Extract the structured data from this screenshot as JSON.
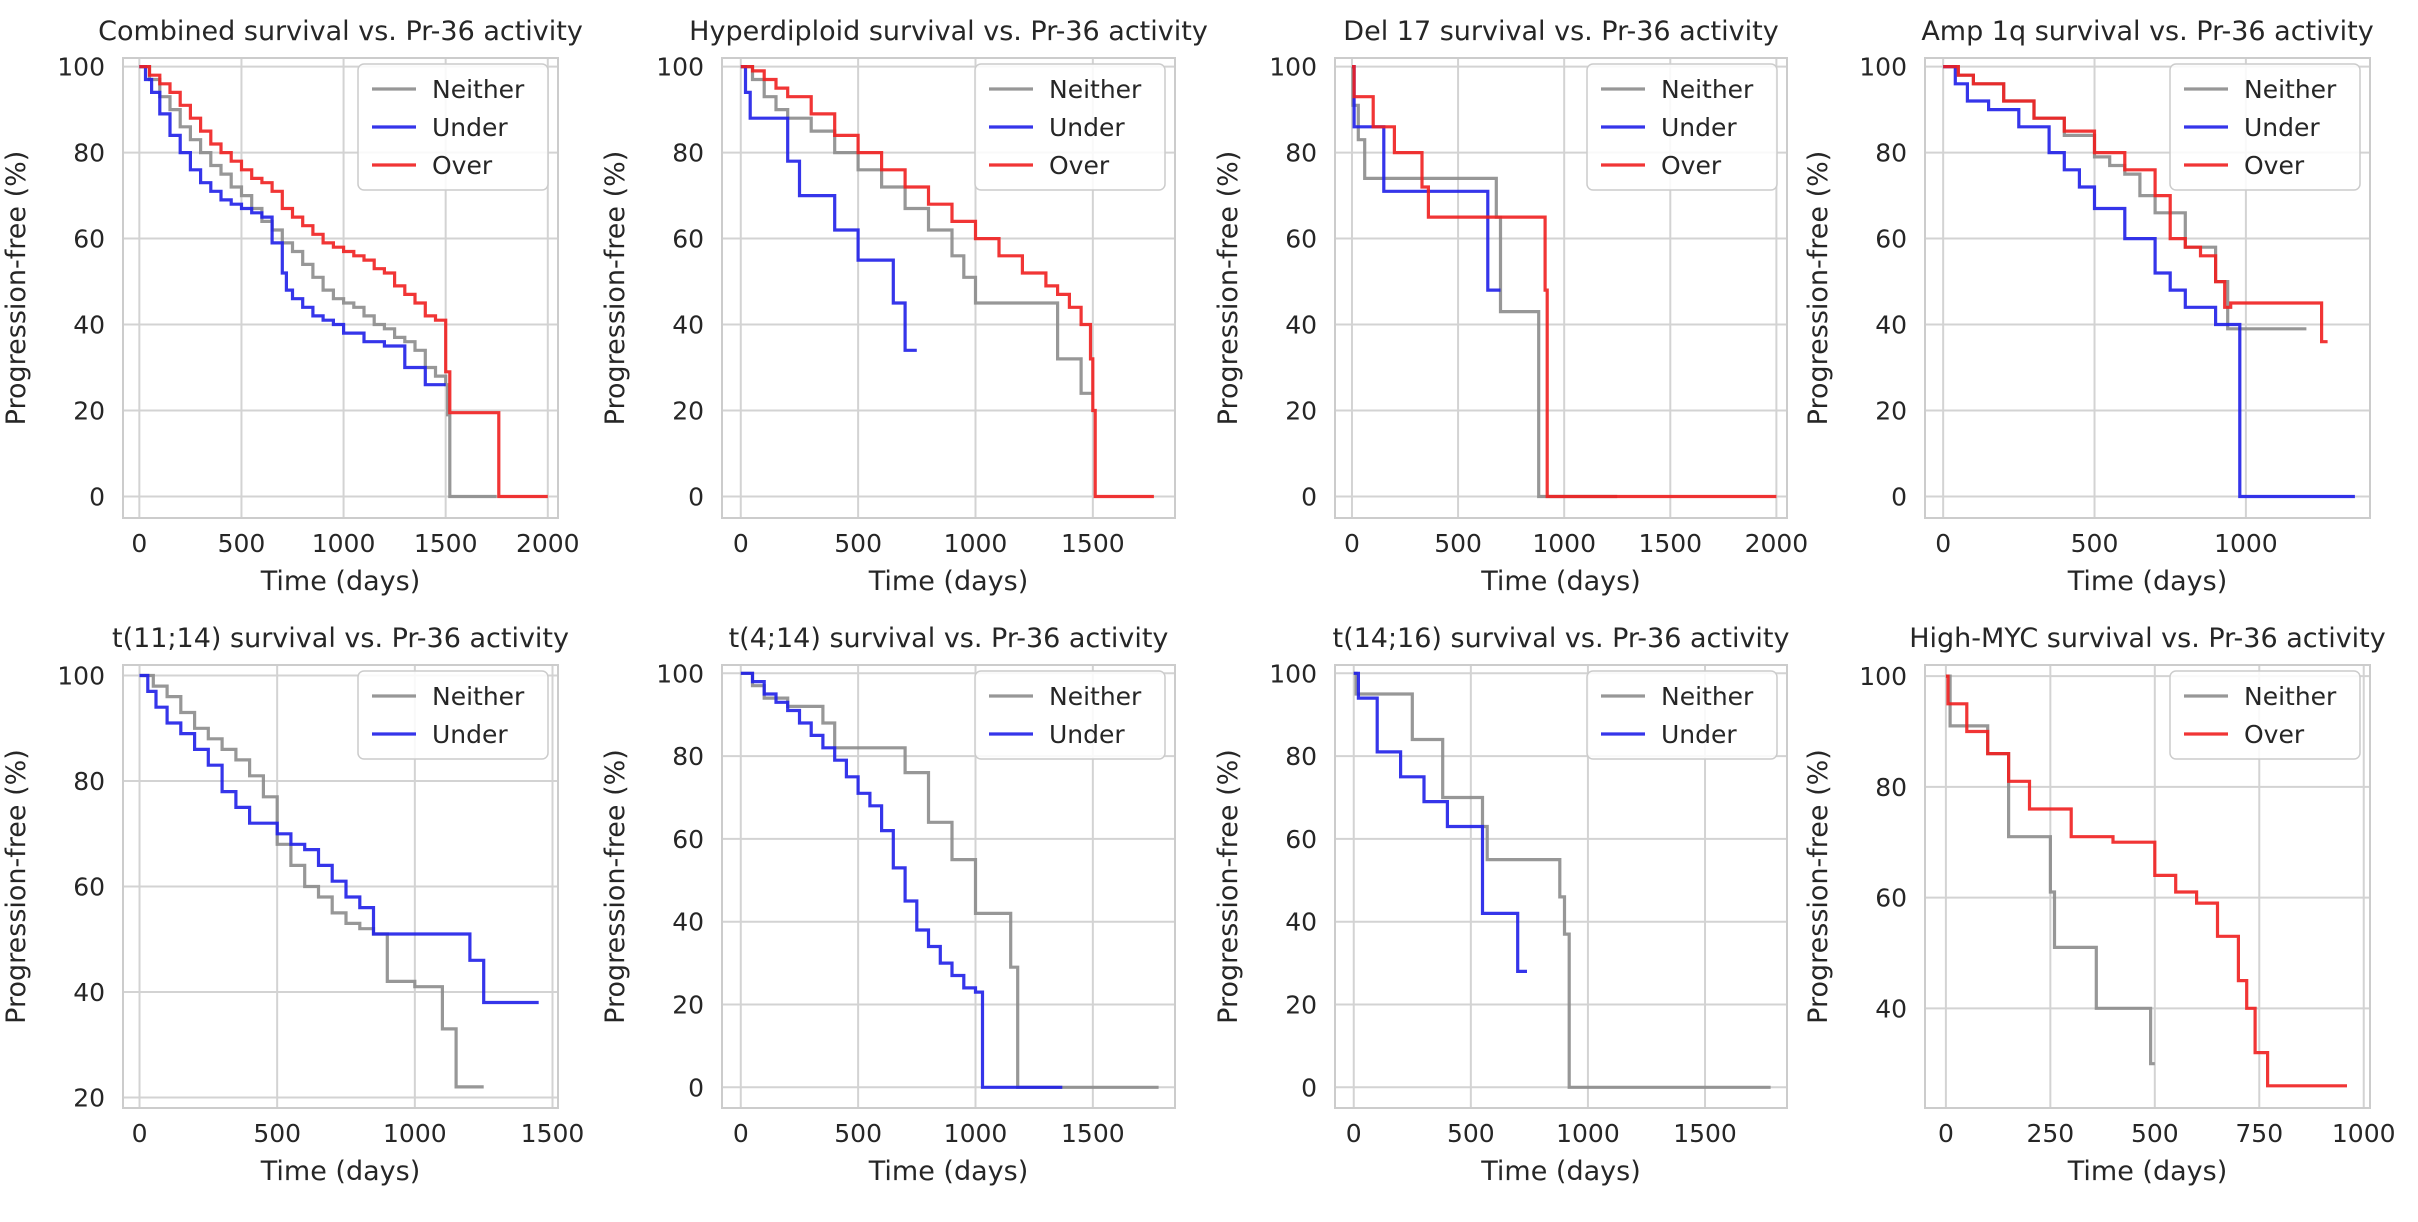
{
  "figure": {
    "ylabel": "Progression-free (%)",
    "xlabel": "Time (days)"
  },
  "colors": {
    "Neither": "#8c8c8c",
    "Under": "#1f1fe8",
    "Over": "#ef1f1f"
  },
  "chart_data": [
    {
      "type": "line",
      "title": "Combined survival vs. Pr-36 activity",
      "xlabel": "Time (days)",
      "ylabel": "Progression-free (%)",
      "xlim": [
        -80,
        2050
      ],
      "ylim": [
        -5,
        102
      ],
      "xticks": [
        0,
        500,
        1000,
        1500,
        2000
      ],
      "yticks": [
        0,
        20,
        40,
        60,
        80,
        100
      ],
      "legend": [
        "Neither",
        "Under",
        "Over"
      ],
      "series": [
        {
          "name": "Neither",
          "x": [
            0,
            50,
            100,
            150,
            200,
            250,
            300,
            350,
            400,
            450,
            500,
            550,
            600,
            650,
            700,
            750,
            800,
            850,
            900,
            950,
            1000,
            1050,
            1100,
            1150,
            1200,
            1250,
            1300,
            1350,
            1400,
            1450,
            1500,
            1510,
            1520,
            1750
          ],
          "y": [
            100,
            97,
            93,
            90,
            86,
            83,
            80,
            77,
            75,
            72,
            70,
            67,
            64,
            62,
            59,
            57,
            54,
            51,
            48,
            46,
            45,
            44,
            42,
            40,
            39,
            37,
            36,
            34,
            30,
            28,
            26,
            19,
            0,
            0
          ]
        },
        {
          "name": "Under",
          "x": [
            0,
            30,
            60,
            100,
            150,
            200,
            250,
            300,
            350,
            400,
            450,
            500,
            550,
            600,
            650,
            700,
            720,
            750,
            800,
            850,
            900,
            950,
            1000,
            1100,
            1200,
            1300,
            1350,
            1400,
            1450,
            1500
          ],
          "y": [
            100,
            97,
            94,
            89,
            84,
            80,
            76,
            73,
            71,
            69,
            68,
            67,
            66,
            65,
            59,
            52,
            48,
            46,
            44,
            42,
            41,
            40,
            38,
            36,
            35,
            30,
            30,
            26,
            26,
            26
          ]
        },
        {
          "name": "Over",
          "x": [
            0,
            50,
            100,
            150,
            200,
            250,
            300,
            350,
            400,
            450,
            500,
            550,
            600,
            650,
            700,
            750,
            800,
            850,
            900,
            950,
            1000,
            1050,
            1100,
            1150,
            1200,
            1250,
            1300,
            1350,
            1400,
            1450,
            1500,
            1520,
            1750,
            1760,
            2000
          ],
          "y": [
            100,
            98,
            96,
            94,
            91,
            88,
            85,
            82,
            80,
            78,
            76,
            74,
            73,
            71,
            67,
            65,
            63,
            61,
            59,
            58,
            57,
            56,
            55,
            53,
            52,
            49,
            47,
            45,
            42,
            41,
            29,
            19.5,
            19.5,
            0,
            0
          ]
        }
      ]
    },
    {
      "type": "line",
      "title": "Hyperdiploid survival vs. Pr-36 activity",
      "xlabel": "Time (days)",
      "ylabel": "Progression-free (%)",
      "xlim": [
        -80,
        1850
      ],
      "ylim": [
        -5,
        102
      ],
      "xticks": [
        0,
        500,
        1000,
        1500
      ],
      "yticks": [
        0,
        20,
        40,
        60,
        80,
        100
      ],
      "legend": [
        "Neither",
        "Under",
        "Over"
      ],
      "series": [
        {
          "name": "Neither",
          "x": [
            0,
            50,
            100,
            150,
            200,
            300,
            400,
            500,
            600,
            700,
            800,
            900,
            950,
            1000,
            1100,
            1200,
            1300,
            1350,
            1450,
            1500
          ],
          "y": [
            100,
            97,
            93,
            90,
            88,
            85,
            80,
            76,
            72,
            67,
            62,
            56,
            51,
            45,
            45,
            45,
            45,
            32,
            24,
            24
          ]
        },
        {
          "name": "Under",
          "x": [
            0,
            20,
            40,
            80,
            200,
            250,
            300,
            400,
            450,
            500,
            600,
            650,
            700,
            750
          ],
          "y": [
            100,
            94,
            88,
            88,
            78,
            70,
            70,
            62,
            62,
            55,
            55,
            45,
            34,
            34
          ]
        },
        {
          "name": "Over",
          "x": [
            0,
            50,
            100,
            150,
            200,
            300,
            400,
            500,
            600,
            700,
            800,
            900,
            1000,
            1100,
            1200,
            1300,
            1350,
            1400,
            1450,
            1490,
            1500,
            1510,
            1760
          ],
          "y": [
            100,
            99,
            97,
            95,
            93,
            89,
            84,
            80,
            76,
            72,
            68,
            64,
            60,
            56,
            52,
            49,
            47,
            44,
            40,
            32,
            20,
            0,
            0
          ]
        }
      ]
    },
    {
      "type": "line",
      "title": "Del 17 survival vs. Pr-36 activity",
      "xlabel": "Time (days)",
      "ylabel": "Progression-free (%)",
      "xlim": [
        -80,
        2050
      ],
      "ylim": [
        -5,
        102
      ],
      "xticks": [
        0,
        500,
        1000,
        1500,
        2000
      ],
      "yticks": [
        0,
        20,
        40,
        60,
        80,
        100
      ],
      "legend": [
        "Neither",
        "Under",
        "Over"
      ],
      "series": [
        {
          "name": "Neither",
          "x": [
            0,
            5,
            30,
            60,
            500,
            680,
            700,
            870,
            880,
            1250
          ],
          "y": [
            100,
            91,
            83,
            74,
            74,
            65,
            43,
            43,
            0,
            0
          ]
        },
        {
          "name": "Under",
          "x": [
            0,
            10,
            150,
            600,
            640,
            700
          ],
          "y": [
            100,
            86,
            71,
            71,
            48,
            48
          ]
        },
        {
          "name": "Over",
          "x": [
            0,
            10,
            100,
            200,
            330,
            360,
            900,
            910,
            920,
            2000
          ],
          "y": [
            100,
            93,
            86,
            80,
            72,
            65,
            65,
            48,
            0,
            0
          ]
        }
      ]
    },
    {
      "type": "line",
      "title": "Amp 1q survival vs. Pr-36 activity",
      "xlabel": "Time (days)",
      "ylabel": "Progression-free (%)",
      "xlim": [
        -60,
        1410
      ],
      "ylim": [
        -5,
        102
      ],
      "xticks": [
        0,
        500,
        1000
      ],
      "yticks": [
        0,
        20,
        40,
        60,
        80,
        100
      ],
      "legend": [
        "Neither",
        "Under",
        "Over"
      ],
      "series": [
        {
          "name": "Neither",
          "x": [
            0,
            50,
            100,
            200,
            300,
            400,
            500,
            550,
            600,
            650,
            700,
            800,
            900,
            940,
            1000,
            1100,
            1200
          ],
          "y": [
            100,
            98,
            96,
            92,
            88,
            84,
            79,
            77,
            75,
            70,
            66,
            58,
            50,
            39,
            39,
            39,
            39
          ]
        },
        {
          "name": "Under",
          "x": [
            0,
            40,
            80,
            150,
            250,
            350,
            400,
            450,
            500,
            600,
            700,
            750,
            800,
            900,
            980,
            1000,
            1360
          ],
          "y": [
            100,
            96,
            92,
            90,
            86,
            80,
            76,
            72,
            67,
            60,
            52,
            48,
            44,
            40,
            0,
            0,
            0
          ]
        },
        {
          "name": "Over",
          "x": [
            0,
            50,
            100,
            200,
            300,
            400,
            500,
            600,
            700,
            750,
            800,
            850,
            900,
            930,
            950,
            1000,
            1100,
            1240,
            1250,
            1270
          ],
          "y": [
            100,
            98,
            96,
            92,
            88,
            85,
            80,
            76,
            70,
            60,
            58,
            56,
            50,
            44,
            45,
            45,
            45,
            45,
            36,
            36
          ]
        }
      ]
    },
    {
      "type": "line",
      "title": "t(11;14) survival vs. Pr-36 activity",
      "xlabel": "Time (days)",
      "ylabel": "Progression-free (%)",
      "xlim": [
        -60,
        1520
      ],
      "ylim": [
        18,
        102
      ],
      "xticks": [
        0,
        500,
        1000,
        1500
      ],
      "yticks": [
        20,
        40,
        60,
        80,
        100
      ],
      "legend": [
        "Neither",
        "Under"
      ],
      "series": [
        {
          "name": "Neither",
          "x": [
            0,
            50,
            100,
            150,
            200,
            250,
            300,
            350,
            400,
            450,
            500,
            550,
            600,
            650,
            700,
            750,
            800,
            850,
            900,
            1000,
            1050,
            1100,
            1150,
            1250
          ],
          "y": [
            100,
            98,
            96,
            93,
            90,
            88,
            86,
            84,
            81,
            77,
            68,
            64,
            60,
            58,
            55,
            53,
            52,
            51,
            42,
            41,
            41,
            33,
            22,
            22
          ]
        },
        {
          "name": "Under",
          "x": [
            0,
            30,
            60,
            100,
            150,
            200,
            250,
            300,
            350,
            400,
            450,
            500,
            550,
            600,
            650,
            700,
            750,
            800,
            850,
            1000,
            1100,
            1200,
            1250,
            1450
          ],
          "y": [
            100,
            97,
            94,
            91,
            89,
            86,
            83,
            78,
            75,
            72,
            72,
            70,
            68,
            67,
            64,
            61,
            58,
            56,
            51,
            51,
            51,
            46,
            38,
            38
          ]
        }
      ]
    },
    {
      "type": "line",
      "title": "t(4;14) survival vs. Pr-36 activity",
      "xlabel": "Time (days)",
      "ylabel": "Progression-free (%)",
      "xlim": [
        -80,
        1850
      ],
      "ylim": [
        -5,
        102
      ],
      "xticks": [
        0,
        500,
        1000,
        1500
      ],
      "yticks": [
        0,
        20,
        40,
        60,
        80,
        100
      ],
      "legend": [
        "Neither",
        "Under"
      ],
      "series": [
        {
          "name": "Neither",
          "x": [
            0,
            50,
            100,
            200,
            350,
            400,
            500,
            600,
            700,
            800,
            900,
            1000,
            1100,
            1150,
            1180,
            1200,
            1780
          ],
          "y": [
            100,
            97,
            94,
            92,
            88,
            82,
            82,
            82,
            76,
            64,
            55,
            42,
            42,
            29,
            0,
            0,
            0
          ]
        },
        {
          "name": "Under",
          "x": [
            0,
            50,
            100,
            150,
            200,
            250,
            300,
            350,
            400,
            450,
            500,
            550,
            600,
            650,
            700,
            750,
            800,
            850,
            900,
            950,
            1000,
            1030,
            1100,
            1370
          ],
          "y": [
            100,
            98,
            95,
            93,
            91,
            88,
            85,
            82,
            79,
            75,
            71,
            68,
            62,
            53,
            45,
            38,
            34,
            30,
            27,
            24,
            23,
            0,
            0,
            0
          ]
        }
      ]
    },
    {
      "type": "line",
      "title": "t(14;16) survival vs. Pr-36 activity",
      "xlabel": "Time (days)",
      "ylabel": "Progression-free (%)",
      "xlim": [
        -80,
        1850
      ],
      "ylim": [
        -5,
        102
      ],
      "xticks": [
        0,
        500,
        1000,
        1500
      ],
      "yticks": [
        0,
        20,
        40,
        60,
        80,
        100
      ],
      "legend": [
        "Neither",
        "Under"
      ],
      "series": [
        {
          "name": "Neither",
          "x": [
            0,
            10,
            250,
            350,
            380,
            550,
            570,
            800,
            880,
            900,
            920,
            1780
          ],
          "y": [
            100,
            95,
            84,
            84,
            70,
            63,
            55,
            55,
            46,
            37,
            0,
            0
          ]
        },
        {
          "name": "Under",
          "x": [
            0,
            20,
            100,
            200,
            300,
            400,
            550,
            600,
            700,
            740
          ],
          "y": [
            100,
            94,
            81,
            75,
            69,
            63,
            42,
            42,
            28,
            28
          ]
        }
      ]
    },
    {
      "type": "line",
      "title": "High-MYC survival vs. Pr-36 activity",
      "xlabel": "Time (days)",
      "ylabel": "Progression-free (%)",
      "xlim": [
        -50,
        1015
      ],
      "ylim": [
        22,
        102
      ],
      "xticks": [
        0,
        250,
        500,
        750,
        1000
      ],
      "yticks": [
        40,
        60,
        80,
        100
      ],
      "legend": [
        "Neither",
        "Over"
      ],
      "series": [
        {
          "name": "Neither",
          "x": [
            0,
            10,
            100,
            150,
            250,
            260,
            360,
            470,
            490,
            500
          ],
          "y": [
            100,
            91,
            86,
            71,
            61,
            51,
            40,
            40,
            30,
            30
          ]
        },
        {
          "name": "Over",
          "x": [
            0,
            5,
            50,
            100,
            150,
            200,
            300,
            400,
            500,
            550,
            600,
            650,
            700,
            720,
            740,
            770,
            960
          ],
          "y": [
            100,
            95,
            90,
            86,
            81,
            76,
            71,
            70,
            64,
            61,
            59,
            53,
            45,
            40,
            32,
            26,
            26
          ]
        }
      ]
    }
  ]
}
